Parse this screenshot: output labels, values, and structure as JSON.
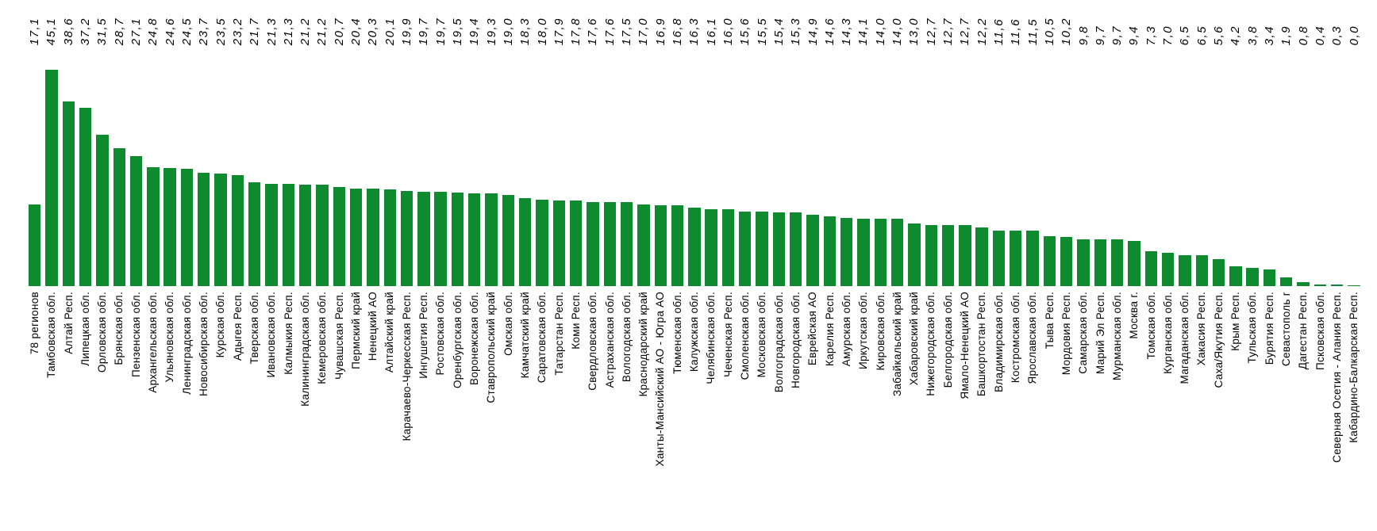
{
  "chart_data": {
    "type": "bar",
    "title": "",
    "xlabel": "",
    "ylabel": "",
    "ylim": [
      0,
      45.1
    ],
    "grid": false,
    "legend": false,
    "axis_lines": false,
    "bar_color": "#0E8B2F",
    "label_color": "#000000",
    "value_label_style": "italic, rotated 90° counterclockwise, fixed row at top, bottom-aligned, comma decimal separator",
    "category_label_style": "rotated 90° counterclockwise, top-aligned under bars",
    "categories": [
      "78 регионов",
      "Тамбовская обл.",
      "Алтай Респ.",
      "Липецкая обл.",
      "Орловская обл.",
      "Брянская обл.",
      "Пензенская обл.",
      "Архангельская обл.",
      "Ульяновская обл.",
      "Ленинградская обл.",
      "Новосибирская обл.",
      "Курская обл.",
      "Адыгея Респ.",
      "Тверская обл.",
      "Ивановская обл.",
      "Калмыкия Респ.",
      "Калининградская обл.",
      "Кемеровская обл.",
      "Чувашская Респ.",
      "Пермский край",
      "Ненецкий АО",
      "Алтайский край",
      "Карачаево-Черкесская Респ.",
      "Ингушетия Респ.",
      "Ростовская обл.",
      "Оренбургская обл.",
      "Воронежская обл.",
      "Ставропольский край",
      "Омская обл.",
      "Камчатский край",
      "Саратовская обл.",
      "Татарстан Респ.",
      "Коми Респ.",
      "Свердловская обл.",
      "Астраханская обл.",
      "Вологодская обл.",
      "Краснодарский край",
      "Ханты-Мансийский АО - Югра АО",
      "Тюменская обл.",
      "Калужская обл.",
      "Челябинская обл.",
      "Чеченская Респ.",
      "Смоленская обл.",
      "Московская обл.",
      "Волгоградская обл.",
      "Новгородская обл.",
      "Еврейская АО",
      "Карелия Респ.",
      "Амурская обл.",
      "Иркутская обл.",
      "Кировская обл.",
      "Забайкальский край",
      "Хабаровский край",
      "Нижегородская обл.",
      "Белгородская обл.",
      "Ямало-Ненецкий АО",
      "Башкортостан Респ.",
      "Владимирская обл.",
      "Костромская обл.",
      "Ярославская обл.",
      "Тыва Респ.",
      "Мордовия Респ.",
      "Самарская обл.",
      "Марий Эл Респ.",
      "Мурманская обл.",
      "Москва г.",
      "Томская обл.",
      "Курганская обл.",
      "Магаданская обл.",
      "Хакасия Респ.",
      "Саха/Якутия Респ.",
      "Крым Респ.",
      "Тульская обл.",
      "Бурятия Респ.",
      "Севастополь г",
      "Дагестан Респ.",
      "Псковская обл.",
      "Северная Осетия - Алания Респ.",
      "Кабардино-Балкарская Респ."
    ],
    "values": [
      17.1,
      45.1,
      38.6,
      37.2,
      31.5,
      28.7,
      27.1,
      24.8,
      24.6,
      24.5,
      23.7,
      23.5,
      23.2,
      21.7,
      21.3,
      21.3,
      21.2,
      21.2,
      20.7,
      20.4,
      20.3,
      20.1,
      19.9,
      19.7,
      19.7,
      19.5,
      19.4,
      19.3,
      19.0,
      18.3,
      18.0,
      17.9,
      17.8,
      17.6,
      17.6,
      17.5,
      17.0,
      16.9,
      16.8,
      16.3,
      16.1,
      16.0,
      15.6,
      15.5,
      15.4,
      15.3,
      14.9,
      14.6,
      14.3,
      14.1,
      14.0,
      14.0,
      13.0,
      12.7,
      12.7,
      12.7,
      12.2,
      11.6,
      11.6,
      11.5,
      10.5,
      10.2,
      9.8,
      9.7,
      9.7,
      9.4,
      7.3,
      7.0,
      6.5,
      6.5,
      5.6,
      4.2,
      3.8,
      3.4,
      1.9,
      0.8,
      0.4,
      0.3,
      0.0
    ],
    "value_labels": [
      "17,1",
      "45,1",
      "38,6",
      "37,2",
      "31,5",
      "28,7",
      "27,1",
      "24,8",
      "24,6",
      "24,5",
      "23,7",
      "23,5",
      "23,2",
      "21,7",
      "21,3",
      "21,3",
      "21,2",
      "21,2",
      "20,7",
      "20,4",
      "20,3",
      "20,1",
      "19,9",
      "19,7",
      "19,7",
      "19,5",
      "19,4",
      "19,3",
      "19,0",
      "18,3",
      "18,0",
      "17,9",
      "17,8",
      "17,6",
      "17,6",
      "17,5",
      "17,0",
      "16,9",
      "16,8",
      "16,3",
      "16,1",
      "16,0",
      "15,6",
      "15,5",
      "15,4",
      "15,3",
      "14,9",
      "14,6",
      "14,3",
      "14,1",
      "14,0",
      "14,0",
      "13,0",
      "12,7",
      "12,7",
      "12,7",
      "12,2",
      "11,6",
      "11,6",
      "11,5",
      "10,5",
      "10,2",
      "9,8",
      "9,7",
      "9,7",
      "9,4",
      "7,3",
      "7,0",
      "6,5",
      "6,5",
      "5,6",
      "4,2",
      "3,8",
      "3,4",
      "1,9",
      "0,8",
      "0,4",
      "0,3",
      "0,0"
    ]
  }
}
